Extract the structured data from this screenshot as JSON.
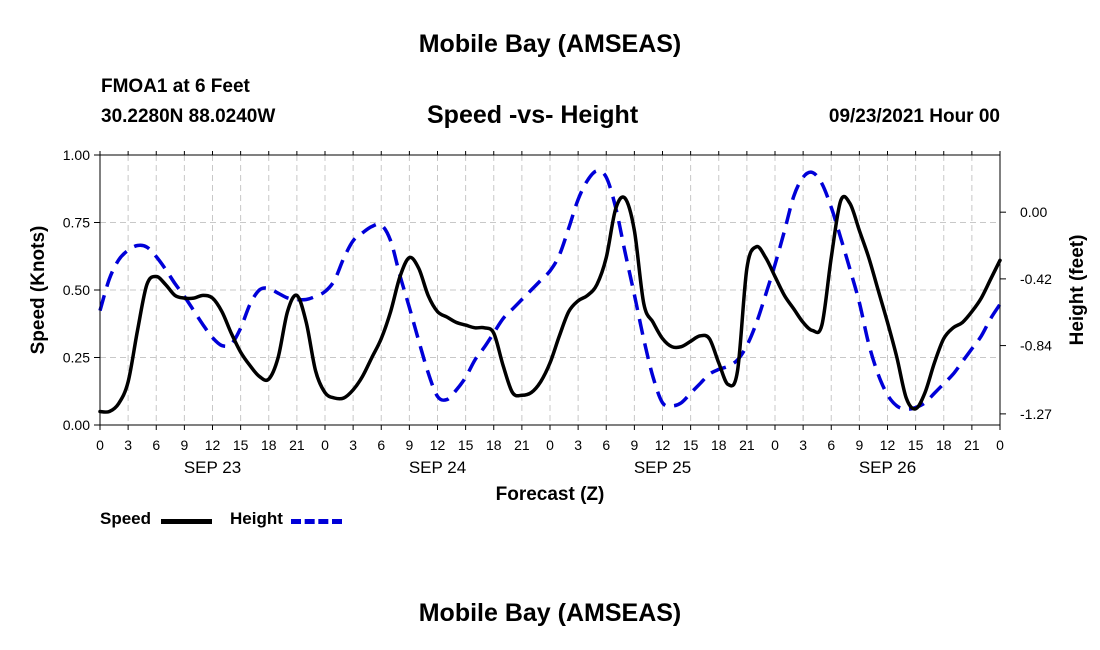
{
  "header": {
    "top_title": "Mobile Bay (AMSEAS)",
    "station": "FMOA1 at 6 Feet",
    "coords": "30.2280N  88.0240W",
    "subtitle": "Speed -vs- Height",
    "datetime": "09/23/2021 Hour 00",
    "bottom_title": "Mobile Bay (AMSEAS)"
  },
  "legend": {
    "speed_label": "Speed",
    "height_label": "Height"
  },
  "chart_data": {
    "type": "line",
    "title": "Speed -vs- Height",
    "xlabel": "Forecast (Z)",
    "ylabel": "Speed (Knots)",
    "y2label": "Height (feet)",
    "xlim": [
      0,
      96
    ],
    "ylim": [
      0,
      1.0
    ],
    "y2lim": [
      -1.34,
      0.36
    ],
    "y_ticks": [
      "0.00",
      "0.25",
      "0.50",
      "0.75",
      "1.00"
    ],
    "y_tick_values": [
      0,
      0.25,
      0.5,
      0.75,
      1.0
    ],
    "y2_ticks": [
      "0.00",
      "-0.42",
      "-0.84",
      "-1.27"
    ],
    "y2_tick_values": [
      0,
      -0.42,
      -0.84,
      -1.27
    ],
    "x_tick_hours": [
      0,
      3,
      6,
      9,
      12,
      15,
      18,
      21,
      24,
      27,
      30,
      33,
      36,
      39,
      42,
      45,
      48,
      51,
      54,
      57,
      60,
      63,
      66,
      69,
      72,
      75,
      78,
      81,
      84,
      87,
      90,
      93,
      96
    ],
    "x_tick_labels": [
      "0",
      "3",
      "6",
      "9",
      "12",
      "15",
      "18",
      "21",
      "0",
      "3",
      "6",
      "9",
      "12",
      "15",
      "18",
      "21",
      "0",
      "3",
      "6",
      "9",
      "12",
      "15",
      "18",
      "21",
      "0",
      "3",
      "6",
      "9",
      "12",
      "15",
      "18",
      "21",
      "0"
    ],
    "day_labels": [
      {
        "hour": 12,
        "label": "SEP 23"
      },
      {
        "hour": 36,
        "label": "SEP 24"
      },
      {
        "hour": 60,
        "label": "SEP 25"
      },
      {
        "hour": 84,
        "label": "SEP 26"
      }
    ],
    "series": [
      {
        "name": "Speed",
        "axis": "left",
        "color": "#000000",
        "style": "solid",
        "points": [
          [
            0,
            0.05
          ],
          [
            1,
            0.05
          ],
          [
            2,
            0.08
          ],
          [
            3,
            0.16
          ],
          [
            4,
            0.35
          ],
          [
            5,
            0.52
          ],
          [
            6,
            0.55
          ],
          [
            7,
            0.52
          ],
          [
            8,
            0.48
          ],
          [
            9,
            0.47
          ],
          [
            10,
            0.47
          ],
          [
            11,
            0.48
          ],
          [
            12,
            0.47
          ],
          [
            13,
            0.42
          ],
          [
            14,
            0.34
          ],
          [
            15,
            0.27
          ],
          [
            16,
            0.22
          ],
          [
            17,
            0.18
          ],
          [
            18,
            0.17
          ],
          [
            19,
            0.25
          ],
          [
            20,
            0.42
          ],
          [
            21,
            0.48
          ],
          [
            22,
            0.38
          ],
          [
            23,
            0.2
          ],
          [
            24,
            0.12
          ],
          [
            25,
            0.1
          ],
          [
            26,
            0.1
          ],
          [
            27,
            0.13
          ],
          [
            28,
            0.18
          ],
          [
            29,
            0.25
          ],
          [
            30,
            0.32
          ],
          [
            31,
            0.42
          ],
          [
            32,
            0.55
          ],
          [
            33,
            0.62
          ],
          [
            34,
            0.58
          ],
          [
            35,
            0.48
          ],
          [
            36,
            0.42
          ],
          [
            37,
            0.4
          ],
          [
            38,
            0.38
          ],
          [
            39,
            0.37
          ],
          [
            40,
            0.36
          ],
          [
            41,
            0.36
          ],
          [
            42,
            0.34
          ],
          [
            43,
            0.22
          ],
          [
            44,
            0.12
          ],
          [
            45,
            0.11
          ],
          [
            46,
            0.12
          ],
          [
            47,
            0.16
          ],
          [
            48,
            0.23
          ],
          [
            49,
            0.33
          ],
          [
            50,
            0.42
          ],
          [
            51,
            0.46
          ],
          [
            52,
            0.48
          ],
          [
            53,
            0.52
          ],
          [
            54,
            0.62
          ],
          [
            55,
            0.8
          ],
          [
            56,
            0.84
          ],
          [
            57,
            0.72
          ],
          [
            58,
            0.45
          ],
          [
            59,
            0.38
          ],
          [
            60,
            0.32
          ],
          [
            61,
            0.29
          ],
          [
            62,
            0.29
          ],
          [
            63,
            0.31
          ],
          [
            64,
            0.33
          ],
          [
            65,
            0.32
          ],
          [
            66,
            0.23
          ],
          [
            67,
            0.15
          ],
          [
            68,
            0.2
          ],
          [
            69,
            0.58
          ],
          [
            70,
            0.66
          ],
          [
            71,
            0.62
          ],
          [
            72,
            0.55
          ],
          [
            73,
            0.48
          ],
          [
            74,
            0.43
          ],
          [
            75,
            0.38
          ],
          [
            76,
            0.35
          ],
          [
            77,
            0.37
          ],
          [
            78,
            0.62
          ],
          [
            79,
            0.83
          ],
          [
            80,
            0.82
          ],
          [
            81,
            0.72
          ],
          [
            82,
            0.62
          ],
          [
            83,
            0.5
          ],
          [
            84,
            0.38
          ],
          [
            85,
            0.25
          ],
          [
            86,
            0.1
          ],
          [
            87,
            0.06
          ],
          [
            88,
            0.12
          ],
          [
            89,
            0.23
          ],
          [
            90,
            0.32
          ],
          [
            91,
            0.36
          ],
          [
            92,
            0.38
          ],
          [
            93,
            0.42
          ],
          [
            94,
            0.47
          ],
          [
            95,
            0.54
          ],
          [
            96,
            0.61
          ]
        ]
      },
      {
        "name": "Height",
        "axis": "right",
        "color": "#0000d8",
        "style": "dashed",
        "points": [
          [
            0,
            -0.62
          ],
          [
            1,
            -0.42
          ],
          [
            2,
            -0.3
          ],
          [
            3,
            -0.24
          ],
          [
            4,
            -0.21
          ],
          [
            5,
            -0.22
          ],
          [
            6,
            -0.28
          ],
          [
            7,
            -0.36
          ],
          [
            8,
            -0.45
          ],
          [
            9,
            -0.53
          ],
          [
            10,
            -0.62
          ],
          [
            11,
            -0.71
          ],
          [
            12,
            -0.79
          ],
          [
            13,
            -0.84
          ],
          [
            14,
            -0.83
          ],
          [
            15,
            -0.73
          ],
          [
            16,
            -0.58
          ],
          [
            17,
            -0.49
          ],
          [
            18,
            -0.48
          ],
          [
            19,
            -0.51
          ],
          [
            20,
            -0.54
          ],
          [
            21,
            -0.55
          ],
          [
            22,
            -0.55
          ],
          [
            23,
            -0.53
          ],
          [
            24,
            -0.5
          ],
          [
            25,
            -0.43
          ],
          [
            26,
            -0.29
          ],
          [
            27,
            -0.18
          ],
          [
            28,
            -0.13
          ],
          [
            29,
            -0.09
          ],
          [
            30,
            -0.08
          ],
          [
            31,
            -0.18
          ],
          [
            32,
            -0.4
          ],
          [
            33,
            -0.6
          ],
          [
            34,
            -0.81
          ],
          [
            35,
            -1.01
          ],
          [
            36,
            -1.16
          ],
          [
            37,
            -1.18
          ],
          [
            38,
            -1.12
          ],
          [
            39,
            -1.04
          ],
          [
            40,
            -0.93
          ],
          [
            41,
            -0.85
          ],
          [
            42,
            -0.76
          ],
          [
            43,
            -0.67
          ],
          [
            44,
            -0.61
          ],
          [
            45,
            -0.55
          ],
          [
            46,
            -0.49
          ],
          [
            47,
            -0.43
          ],
          [
            48,
            -0.37
          ],
          [
            49,
            -0.27
          ],
          [
            50,
            -0.1
          ],
          [
            51,
            0.08
          ],
          [
            52,
            0.2
          ],
          [
            53,
            0.26
          ],
          [
            54,
            0.22
          ],
          [
            55,
            0.03
          ],
          [
            56,
            -0.25
          ],
          [
            57,
            -0.52
          ],
          [
            58,
            -0.8
          ],
          [
            59,
            -1.04
          ],
          [
            60,
            -1.2
          ],
          [
            61,
            -1.22
          ],
          [
            62,
            -1.2
          ],
          [
            63,
            -1.14
          ],
          [
            64,
            -1.08
          ],
          [
            65,
            -1.02
          ],
          [
            66,
            -0.99
          ],
          [
            67,
            -0.97
          ],
          [
            68,
            -0.93
          ],
          [
            69,
            -0.84
          ],
          [
            70,
            -0.7
          ],
          [
            71,
            -0.52
          ],
          [
            72,
            -0.33
          ],
          [
            73,
            -0.12
          ],
          [
            74,
            0.1
          ],
          [
            75,
            0.22
          ],
          [
            76,
            0.25
          ],
          [
            77,
            0.18
          ],
          [
            78,
            0.03
          ],
          [
            79,
            -0.16
          ],
          [
            80,
            -0.36
          ],
          [
            81,
            -0.57
          ],
          [
            82,
            -0.83
          ],
          [
            83,
            -1.02
          ],
          [
            84,
            -1.15
          ],
          [
            85,
            -1.22
          ],
          [
            86,
            -1.24
          ],
          [
            87,
            -1.23
          ],
          [
            88,
            -1.2
          ],
          [
            89,
            -1.14
          ],
          [
            90,
            -1.08
          ],
          [
            91,
            -1.02
          ],
          [
            92,
            -0.94
          ],
          [
            93,
            -0.86
          ],
          [
            94,
            -0.78
          ],
          [
            95,
            -0.67
          ],
          [
            96,
            -0.58
          ]
        ]
      }
    ]
  }
}
